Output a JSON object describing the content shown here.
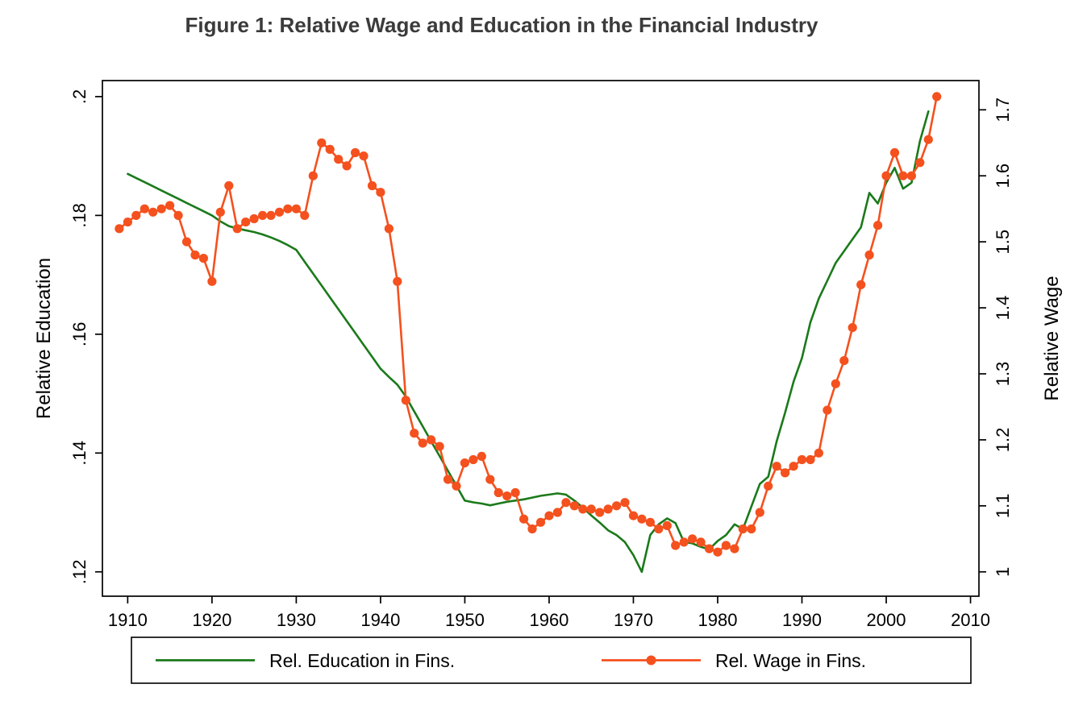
{
  "chart_data": {
    "type": "line",
    "title": "Figure 1: Relative Wage and Education in the Financial Industry",
    "xlabel": "",
    "grid": false,
    "legend_position": "bottom",
    "x_axis": {
      "range": [
        1907,
        2011
      ],
      "ticks": [
        1910,
        1920,
        1930,
        1940,
        1950,
        1960,
        1970,
        1980,
        1990,
        2000,
        2010
      ]
    },
    "left_axis": {
      "label": "Relative Education",
      "range": [
        0.1159,
        0.2027
      ],
      "ticks": [
        {
          "value": 0.12,
          "label": ".12"
        },
        {
          "value": 0.14,
          "label": ".14"
        },
        {
          "value": 0.16,
          "label": ".16"
        },
        {
          "value": 0.18,
          "label": ".18"
        },
        {
          "value": 0.2,
          "label": ".2"
        }
      ]
    },
    "right_axis": {
      "label": "Relative Wage",
      "range": [
        0.9631,
        1.7443
      ],
      "ticks": [
        {
          "value": 1.0,
          "label": "1"
        },
        {
          "value": 1.1,
          "label": "1.1"
        },
        {
          "value": 1.2,
          "label": "1.2"
        },
        {
          "value": 1.3,
          "label": "1.3"
        },
        {
          "value": 1.4,
          "label": "1.4"
        },
        {
          "value": 1.5,
          "label": "1.5"
        },
        {
          "value": 1.6,
          "label": "1.6"
        },
        {
          "value": 1.7,
          "label": "1.7"
        }
      ]
    },
    "series": [
      {
        "name": "Rel. Education in Fins.",
        "axis": "left",
        "color": "#1a7a1a",
        "marker": "none",
        "points": [
          [
            1910,
            0.187
          ],
          [
            1911,
            0.1863
          ],
          [
            1912,
            0.1856
          ],
          [
            1913,
            0.1849
          ],
          [
            1914,
            0.1842
          ],
          [
            1915,
            0.1835
          ],
          [
            1916,
            0.1828
          ],
          [
            1917,
            0.1821
          ],
          [
            1918,
            0.1814
          ],
          [
            1919,
            0.1807
          ],
          [
            1920,
            0.18
          ],
          [
            1921,
            0.179
          ],
          [
            1922,
            0.1782
          ],
          [
            1923,
            0.1778
          ],
          [
            1924,
            0.1775
          ],
          [
            1925,
            0.1772
          ],
          [
            1926,
            0.1768
          ],
          [
            1927,
            0.1763
          ],
          [
            1928,
            0.1757
          ],
          [
            1929,
            0.175
          ],
          [
            1930,
            0.1742
          ],
          [
            1931,
            0.1722
          ],
          [
            1932,
            0.1702
          ],
          [
            1933,
            0.1682
          ],
          [
            1934,
            0.1662
          ],
          [
            1935,
            0.1642
          ],
          [
            1936,
            0.1622
          ],
          [
            1937,
            0.1602
          ],
          [
            1938,
            0.1582
          ],
          [
            1939,
            0.1562
          ],
          [
            1940,
            0.1542
          ],
          [
            1941,
            0.1528
          ],
          [
            1942,
            0.1515
          ],
          [
            1943,
            0.1495
          ],
          [
            1944,
            0.147
          ],
          [
            1945,
            0.1445
          ],
          [
            1946,
            0.142
          ],
          [
            1947,
            0.1395
          ],
          [
            1948,
            0.137
          ],
          [
            1949,
            0.1345
          ],
          [
            1950,
            0.132
          ],
          [
            1951,
            0.1317
          ],
          [
            1952,
            0.1315
          ],
          [
            1953,
            0.1312
          ],
          [
            1954,
            0.1315
          ],
          [
            1955,
            0.1318
          ],
          [
            1956,
            0.132
          ],
          [
            1957,
            0.1322
          ],
          [
            1958,
            0.1325
          ],
          [
            1959,
            0.1328
          ],
          [
            1960,
            0.133
          ],
          [
            1961,
            0.1332
          ],
          [
            1962,
            0.133
          ],
          [
            1963,
            0.132
          ],
          [
            1964,
            0.1308
          ],
          [
            1965,
            0.1295
          ],
          [
            1966,
            0.1283
          ],
          [
            1967,
            0.127
          ],
          [
            1968,
            0.1262
          ],
          [
            1969,
            0.125
          ],
          [
            1970,
            0.1228
          ],
          [
            1971,
            0.12
          ],
          [
            1972,
            0.1262
          ],
          [
            1973,
            0.128
          ],
          [
            1974,
            0.129
          ],
          [
            1975,
            0.1282
          ],
          [
            1976,
            0.125
          ],
          [
            1977,
            0.1248
          ],
          [
            1978,
            0.1242
          ],
          [
            1979,
            0.1238
          ],
          [
            1980,
            0.1252
          ],
          [
            1981,
            0.1262
          ],
          [
            1982,
            0.128
          ],
          [
            1983,
            0.1272
          ],
          [
            1984,
            0.131
          ],
          [
            1985,
            0.1348
          ],
          [
            1986,
            0.136
          ],
          [
            1987,
            0.142
          ],
          [
            1988,
            0.1468
          ],
          [
            1989,
            0.152
          ],
          [
            1990,
            0.156
          ],
          [
            1991,
            0.162
          ],
          [
            1992,
            0.166
          ],
          [
            1993,
            0.169
          ],
          [
            1994,
            0.172
          ],
          [
            1995,
            0.174
          ],
          [
            1996,
            0.176
          ],
          [
            1997,
            0.178
          ],
          [
            1998,
            0.1838
          ],
          [
            1999,
            0.182
          ],
          [
            2000,
            0.1855
          ],
          [
            2001,
            0.188
          ],
          [
            2002,
            0.1845
          ],
          [
            2003,
            0.1855
          ],
          [
            2004,
            0.1925
          ],
          [
            2005,
            0.1975
          ]
        ]
      },
      {
        "name": "Rel. Wage in Fins.",
        "axis": "right",
        "color": "#f4511e",
        "marker": "circle",
        "points": [
          [
            1909,
            1.52
          ],
          [
            1910,
            1.53
          ],
          [
            1911,
            1.54
          ],
          [
            1912,
            1.55
          ],
          [
            1913,
            1.545
          ],
          [
            1914,
            1.55
          ],
          [
            1915,
            1.555
          ],
          [
            1916,
            1.54
          ],
          [
            1917,
            1.5
          ],
          [
            1918,
            1.48
          ],
          [
            1919,
            1.475
          ],
          [
            1920,
            1.44
          ],
          [
            1921,
            1.545
          ],
          [
            1922,
            1.585
          ],
          [
            1923,
            1.52
          ],
          [
            1924,
            1.53
          ],
          [
            1925,
            1.535
          ],
          [
            1926,
            1.54
          ],
          [
            1927,
            1.54
          ],
          [
            1928,
            1.545
          ],
          [
            1929,
            1.55
          ],
          [
            1930,
            1.55
          ],
          [
            1931,
            1.54
          ],
          [
            1932,
            1.6
          ],
          [
            1933,
            1.65
          ],
          [
            1934,
            1.64
          ],
          [
            1935,
            1.625
          ],
          [
            1936,
            1.615
          ],
          [
            1937,
            1.635
          ],
          [
            1938,
            1.63
          ],
          [
            1939,
            1.585
          ],
          [
            1940,
            1.575
          ],
          [
            1941,
            1.52
          ],
          [
            1942,
            1.44
          ],
          [
            1943,
            1.26
          ],
          [
            1944,
            1.21
          ],
          [
            1945,
            1.195
          ],
          [
            1946,
            1.2
          ],
          [
            1947,
            1.19
          ],
          [
            1948,
            1.14
          ],
          [
            1949,
            1.13
          ],
          [
            1950,
            1.165
          ],
          [
            1951,
            1.17
          ],
          [
            1952,
            1.175
          ],
          [
            1953,
            1.14
          ],
          [
            1954,
            1.12
          ],
          [
            1955,
            1.115
          ],
          [
            1956,
            1.12
          ],
          [
            1957,
            1.08
          ],
          [
            1958,
            1.065
          ],
          [
            1959,
            1.075
          ],
          [
            1960,
            1.085
          ],
          [
            1961,
            1.09
          ],
          [
            1962,
            1.105
          ],
          [
            1963,
            1.1
          ],
          [
            1964,
            1.095
          ],
          [
            1965,
            1.095
          ],
          [
            1966,
            1.09
          ],
          [
            1967,
            1.095
          ],
          [
            1968,
            1.1
          ],
          [
            1969,
            1.105
          ],
          [
            1970,
            1.085
          ],
          [
            1971,
            1.08
          ],
          [
            1972,
            1.075
          ],
          [
            1973,
            1.065
          ],
          [
            1974,
            1.07
          ],
          [
            1975,
            1.04
          ],
          [
            1976,
            1.045
          ],
          [
            1977,
            1.05
          ],
          [
            1978,
            1.045
          ],
          [
            1979,
            1.035
          ],
          [
            1980,
            1.03
          ],
          [
            1981,
            1.04
          ],
          [
            1982,
            1.035
          ],
          [
            1983,
            1.065
          ],
          [
            1984,
            1.065
          ],
          [
            1985,
            1.09
          ],
          [
            1986,
            1.13
          ],
          [
            1987,
            1.16
          ],
          [
            1988,
            1.15
          ],
          [
            1989,
            1.16
          ],
          [
            1990,
            1.17
          ],
          [
            1991,
            1.17
          ],
          [
            1992,
            1.18
          ],
          [
            1993,
            1.245
          ],
          [
            1994,
            1.285
          ],
          [
            1995,
            1.32
          ],
          [
            1996,
            1.37
          ],
          [
            1997,
            1.435
          ],
          [
            1998,
            1.48
          ],
          [
            1999,
            1.525
          ],
          [
            2000,
            1.6
          ],
          [
            2001,
            1.635
          ],
          [
            2002,
            1.6
          ],
          [
            2003,
            1.6
          ],
          [
            2004,
            1.62
          ],
          [
            2005,
            1.655
          ],
          [
            2006,
            1.72
          ]
        ]
      }
    ]
  }
}
